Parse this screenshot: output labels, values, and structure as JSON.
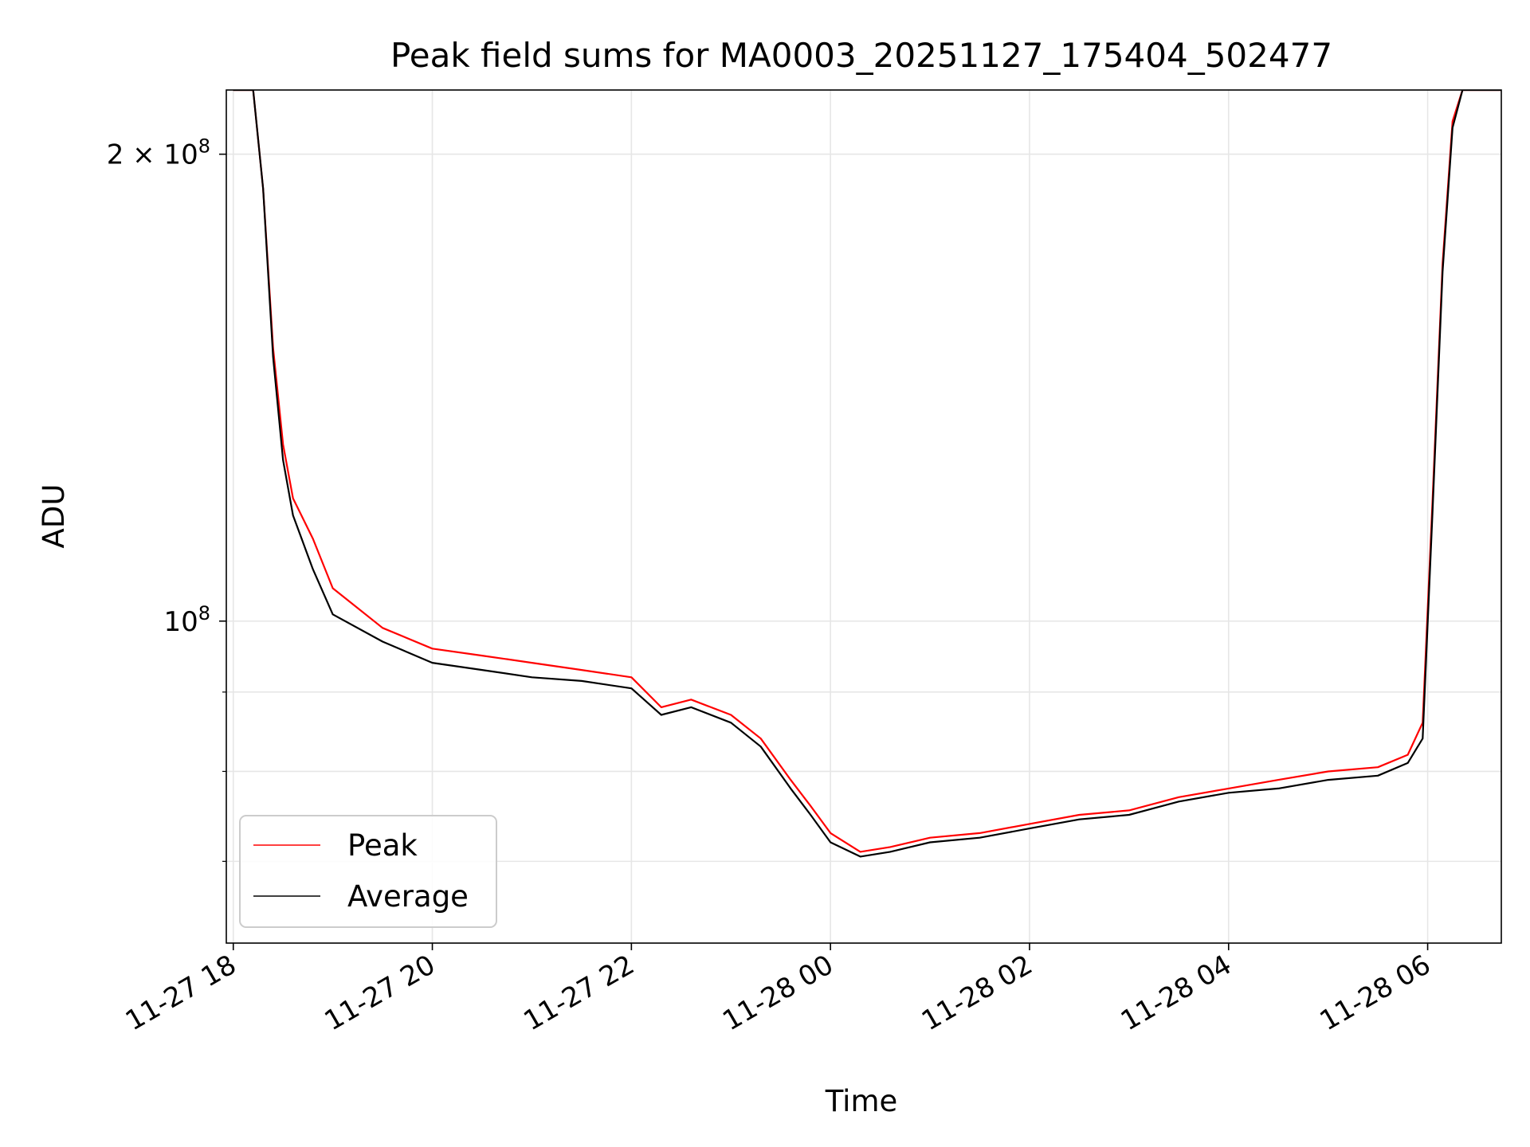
{
  "chart_data": {
    "type": "line",
    "title": "Peak field sums for MA0003_20251127_175404_502477",
    "xlabel": "Time",
    "ylabel": "ADU",
    "yscale": "log",
    "xlim_hours": [
      17.93,
      30.74
    ],
    "ylim": [
      62000000,
      220000000
    ],
    "grid": true,
    "legend_location": "lower left",
    "x_ticks": [
      {
        "hour": 18,
        "label": "11-27 18"
      },
      {
        "hour": 20,
        "label": "11-27 20"
      },
      {
        "hour": 22,
        "label": "11-27 22"
      },
      {
        "hour": 24,
        "label": "11-28 00"
      },
      {
        "hour": 26,
        "label": "11-28 02"
      },
      {
        "hour": 28,
        "label": "11-28 04"
      },
      {
        "hour": 30,
        "label": "11-28 06"
      }
    ],
    "y_ticks_major": [
      {
        "value": 100000000,
        "label_base": "10",
        "label_exp": "8",
        "label_coef": ""
      },
      {
        "value": 200000000,
        "label_base": "10",
        "label_exp": "8",
        "label_coef": "2 × "
      }
    ],
    "y_ticks_minor": [
      70000000,
      80000000,
      90000000
    ],
    "x_hours": [
      18.0,
      18.1,
      18.2,
      18.3,
      18.4,
      18.5,
      18.6,
      18.8,
      19.0,
      19.5,
      20.0,
      20.5,
      21.0,
      21.5,
      22.0,
      22.3,
      22.6,
      23.0,
      23.3,
      23.6,
      23.8,
      24.0,
      24.3,
      24.6,
      25.0,
      25.5,
      26.0,
      26.5,
      27.0,
      27.5,
      28.0,
      28.5,
      29.0,
      29.5,
      29.8,
      29.95,
      30.05,
      30.15,
      30.25,
      30.35,
      30.5,
      30.74
    ],
    "series": [
      {
        "name": "Peak",
        "color": "#ff0000",
        "values": [
          220000000,
          220000000,
          220000000,
          190000000,
          150000000,
          130000000,
          120000000,
          113000000,
          105000000,
          99000000,
          96000000,
          95000000,
          94000000,
          93000000,
          92000000,
          88000000,
          89000000,
          87000000,
          84000000,
          79000000,
          76000000,
          73000000,
          71000000,
          71500000,
          72500000,
          73000000,
          74000000,
          75000000,
          75500000,
          77000000,
          78000000,
          79000000,
          80000000,
          80500000,
          82000000,
          86000000,
          120000000,
          170000000,
          210000000,
          220000000,
          220000000,
          220000000
        ]
      },
      {
        "name": "Average",
        "color": "#000000",
        "values": [
          220000000,
          220000000,
          220000000,
          190000000,
          148000000,
          127000000,
          117000000,
          108000000,
          101000000,
          97000000,
          94000000,
          93000000,
          92000000,
          91500000,
          90500000,
          87000000,
          88000000,
          86000000,
          83000000,
          78000000,
          75000000,
          72000000,
          70500000,
          71000000,
          72000000,
          72500000,
          73500000,
          74500000,
          75000000,
          76500000,
          77500000,
          78000000,
          79000000,
          79500000,
          81000000,
          84000000,
          118000000,
          168000000,
          208000000,
          220000000,
          220000000,
          220000000
        ]
      }
    ]
  }
}
